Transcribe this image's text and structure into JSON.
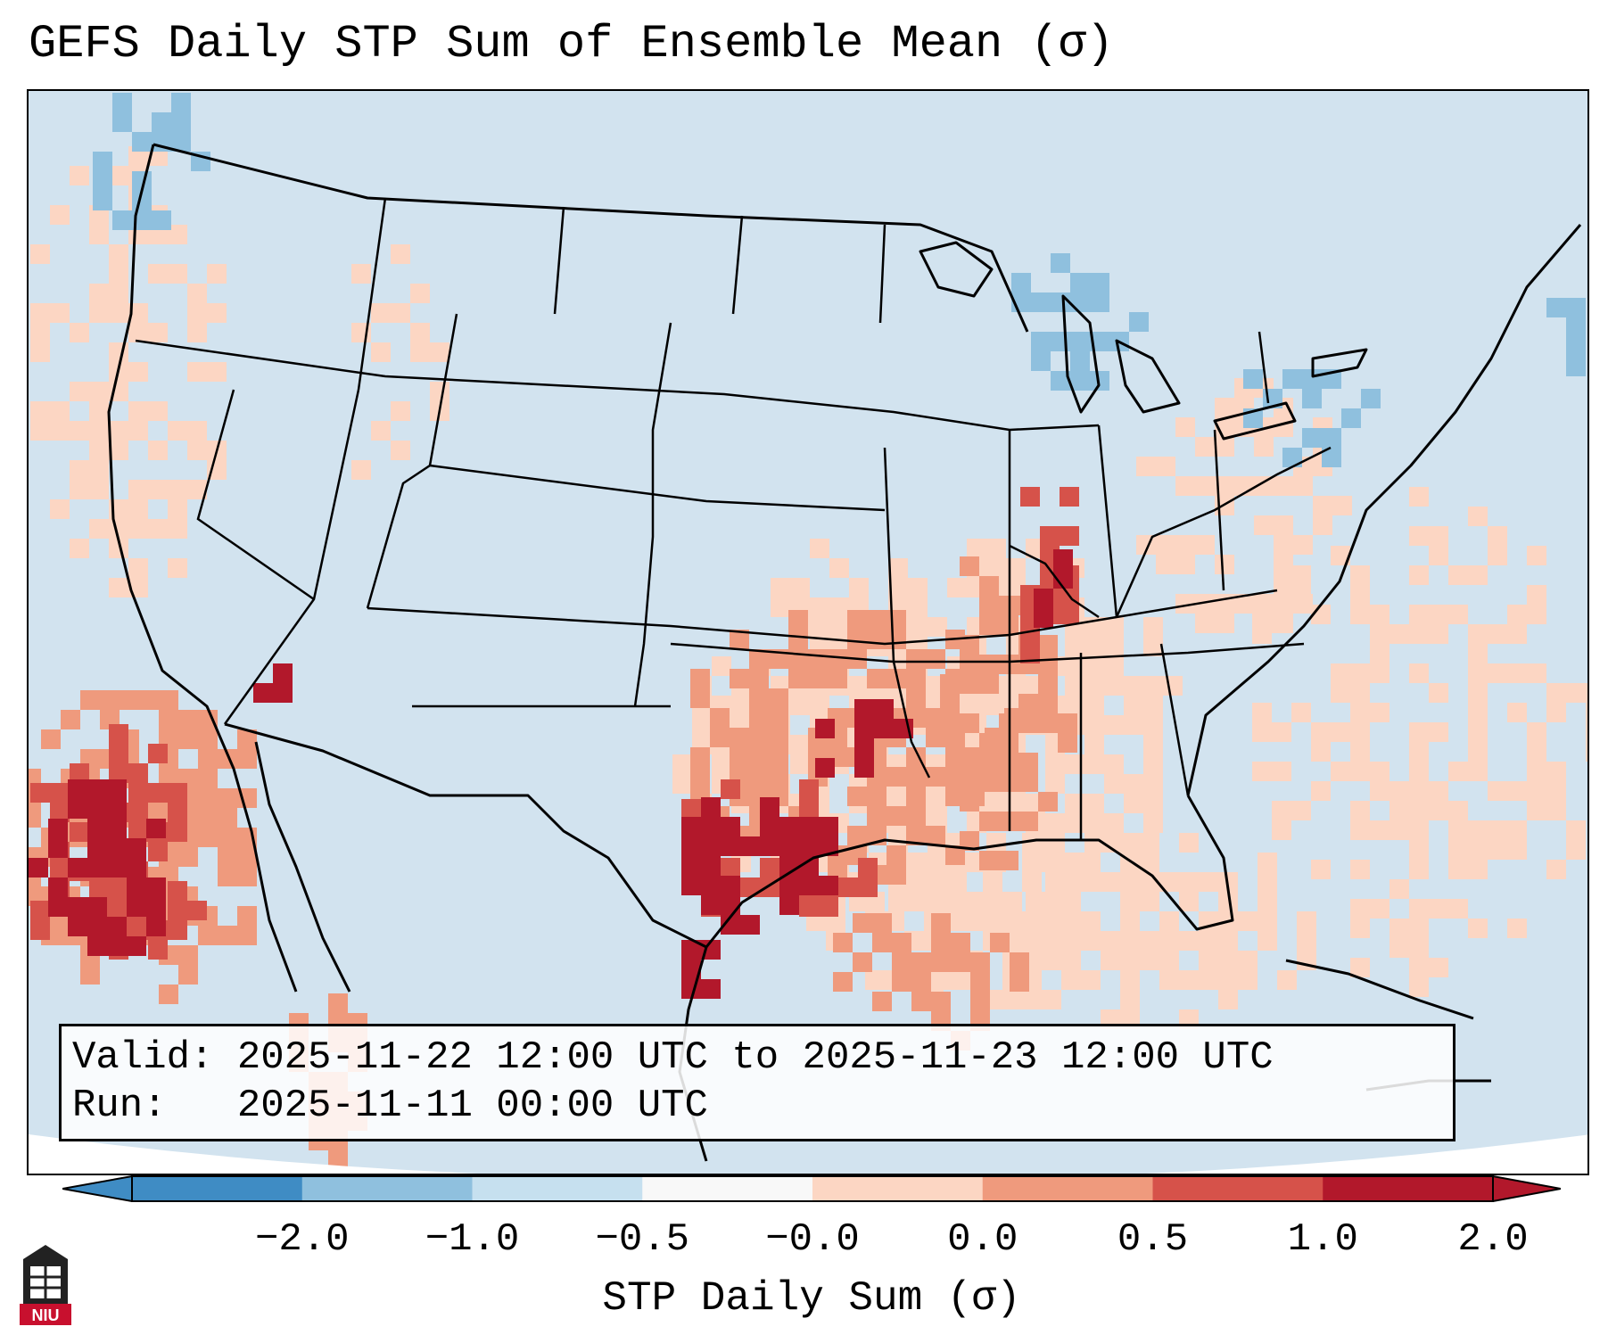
{
  "title": "GEFS Daily STP Sum of Ensemble Mean (σ)",
  "info": {
    "valid_label": "Valid:",
    "valid_value": "2025-11-22 12:00 UTC to 2025-11-23 12:00 UTC",
    "run_label": "Run:",
    "run_value": "2025-11-11 00:00 UTC"
  },
  "colorbar": {
    "label": "STP Daily Sum (σ)",
    "ticks": [
      "−2.0",
      "−1.0",
      "−0.5",
      "−0.0",
      "0.0",
      "0.5",
      "1.0",
      "2.0"
    ],
    "colors": [
      "#3f8cc4",
      "#8fc0de",
      "#c6e0ef",
      "#f8f8f8",
      "#fcd6c3",
      "#ef9a7d",
      "#d6524a",
      "#b2182b"
    ],
    "extend": "both"
  },
  "map": {
    "region": "CONUS",
    "background_color": "#d2e3ef",
    "highlights": [
      "Southern Plains (Texas/Oklahoma) maximum",
      "Lower Mississippi Valley",
      "Off California coast"
    ]
  },
  "logo": {
    "text": "NIU"
  }
}
